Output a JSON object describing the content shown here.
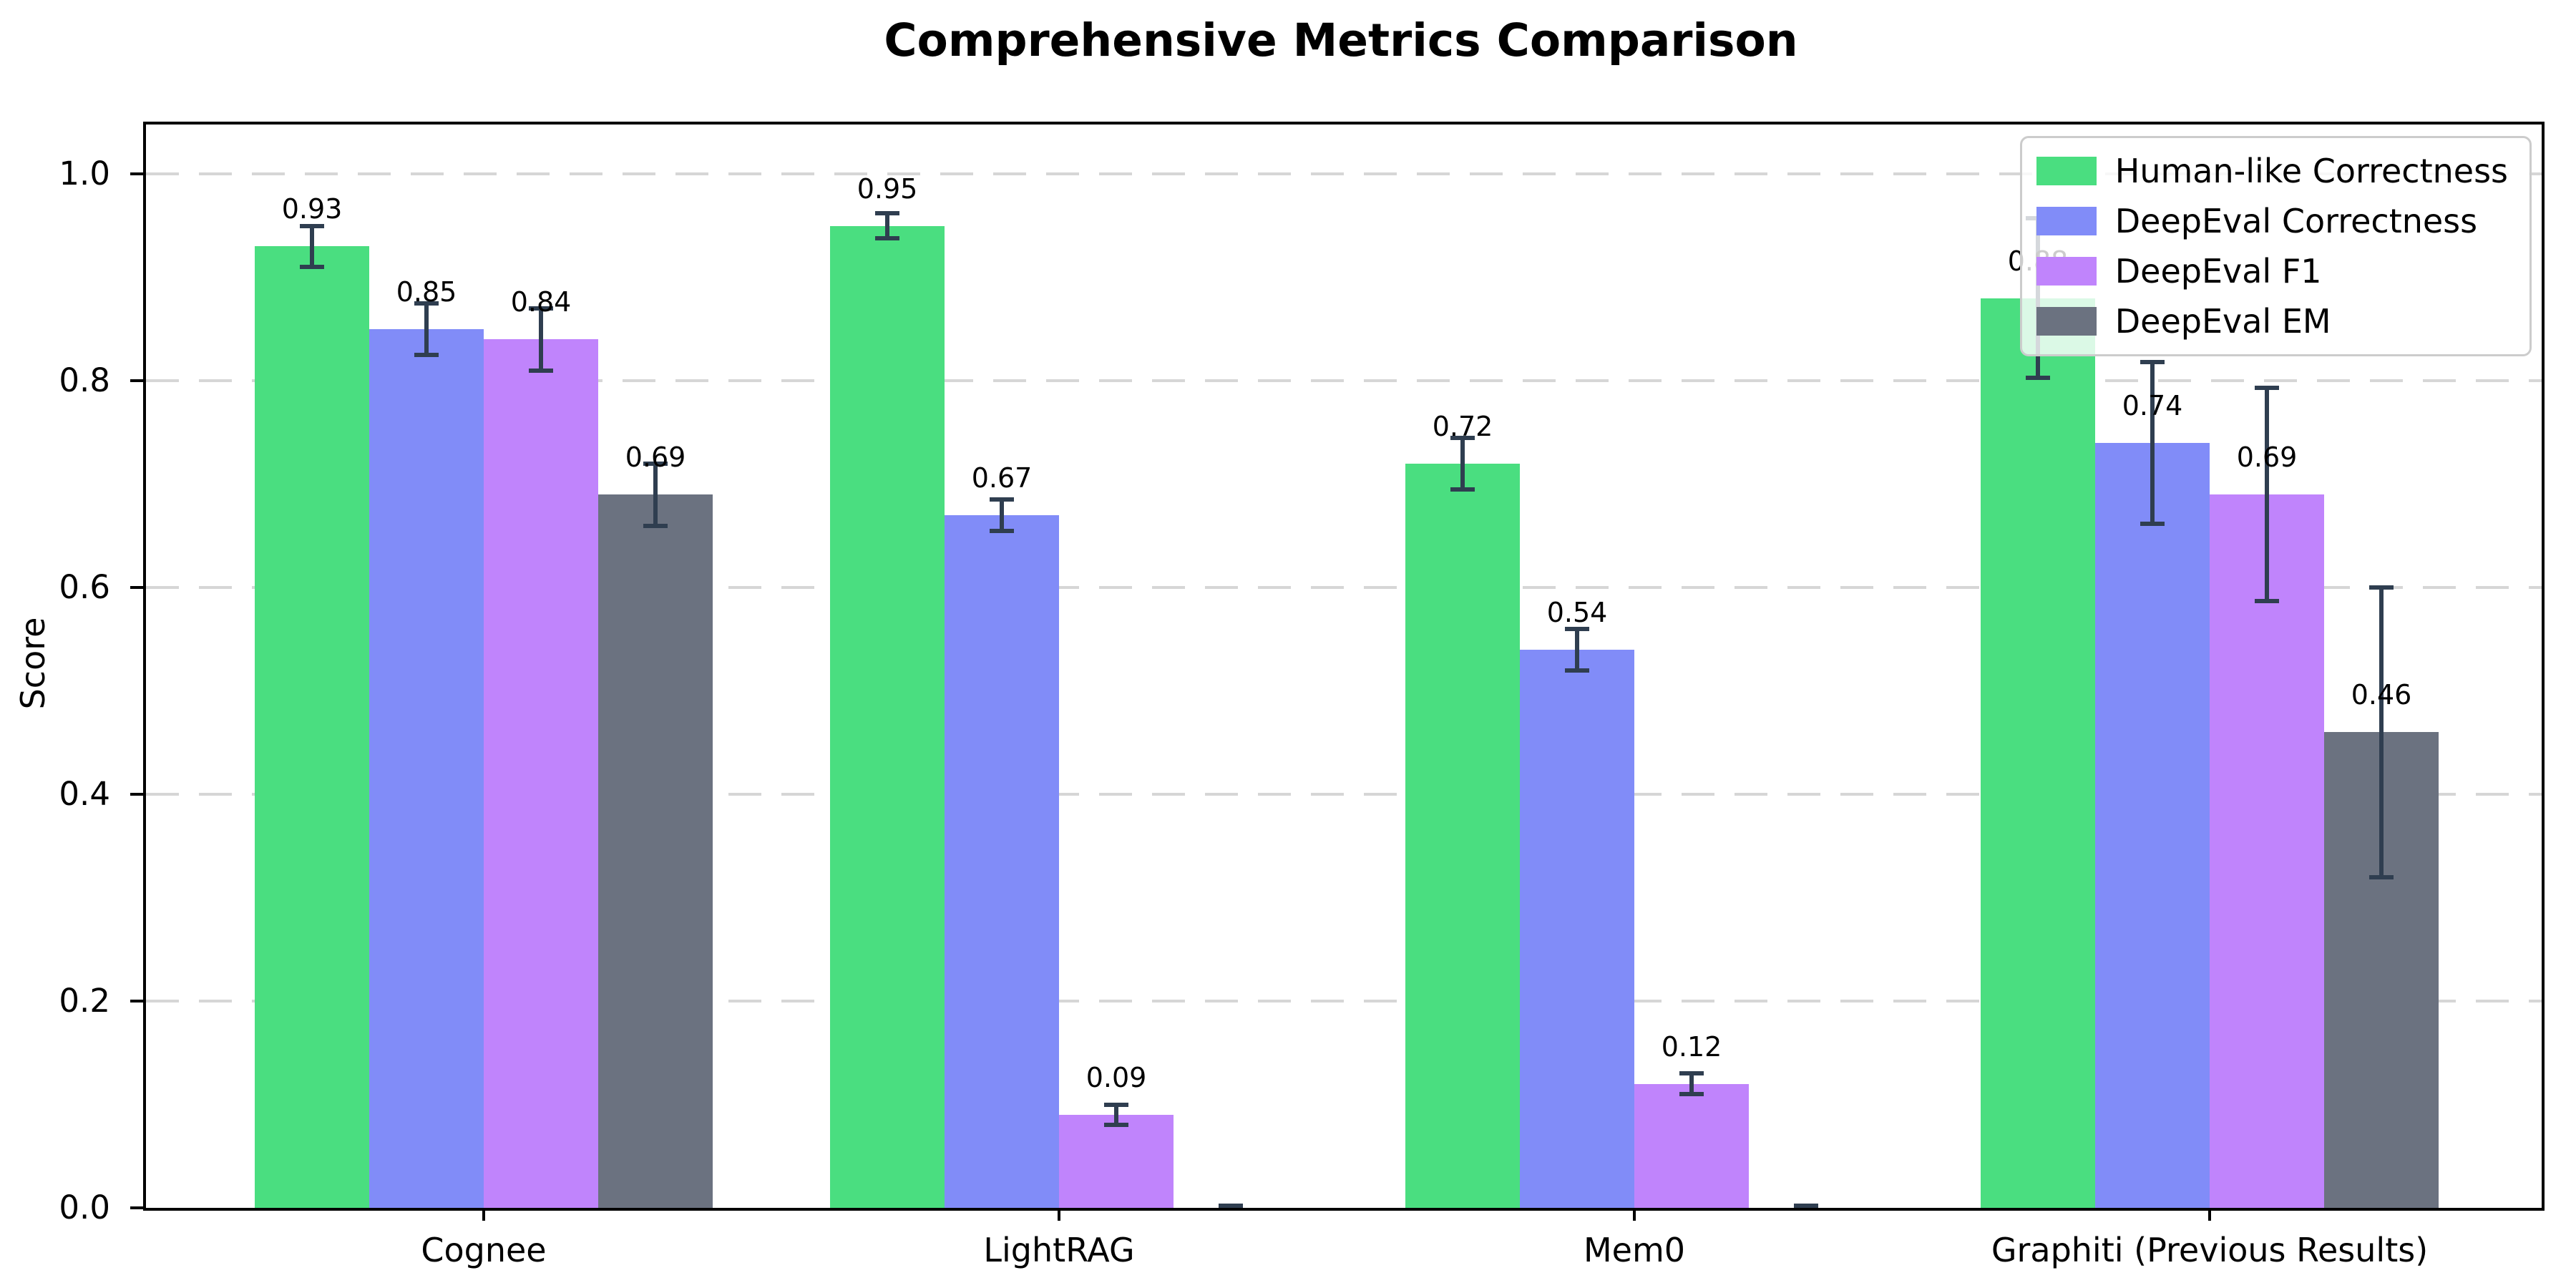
{
  "chart_data": {
    "type": "bar",
    "title": "Comprehensive Metrics Comparison",
    "xlabel": "",
    "ylabel": "Score",
    "ylim": [
      0,
      1.048
    ],
    "ytick_values": [
      0.0,
      0.2,
      0.4,
      0.6,
      0.8,
      1.0
    ],
    "yticks": [
      "0.0",
      "0.2",
      "0.4",
      "0.6",
      "0.8",
      "1.0"
    ],
    "grid": "horizontal-dashed",
    "legend_position": "upper-right",
    "categories": [
      "Cognee",
      "LightRAG",
      "Mem0",
      "Graphiti (Previous Results)"
    ],
    "series": [
      {
        "name": "Human-like Correctness",
        "color": "#4ade80",
        "values": [
          0.93,
          0.95,
          0.72,
          0.88
        ],
        "errors": [
          0.02,
          0.012,
          0.025,
          0.077
        ],
        "labels": [
          "0.93",
          "0.95",
          "0.72",
          "0.88"
        ]
      },
      {
        "name": "DeepEval Correctness",
        "color": "#818cf8",
        "values": [
          0.85,
          0.67,
          0.54,
          0.74
        ],
        "errors": [
          0.025,
          0.015,
          0.02,
          0.078
        ],
        "labels": [
          "0.85",
          "0.67",
          "0.54",
          "0.74"
        ]
      },
      {
        "name": "DeepEval F1",
        "color": "#c084fc",
        "values": [
          0.84,
          0.09,
          0.12,
          0.69
        ],
        "errors": [
          0.03,
          0.01,
          0.01,
          0.103
        ],
        "labels": [
          "0.84",
          "0.09",
          "0.12",
          "0.69"
        ]
      },
      {
        "name": "DeepEval EM",
        "color": "#6b7280",
        "values": [
          0.69,
          0.0,
          0.0,
          0.46
        ],
        "errors": [
          0.03,
          0.002,
          0.002,
          0.14
        ],
        "labels": [
          "0.69",
          null,
          null,
          "0.46"
        ]
      }
    ],
    "error_bar_color": "#2f3e50",
    "axis_color": "#000000",
    "grid_color": "#d6d6d6",
    "background": "#ffffff"
  }
}
